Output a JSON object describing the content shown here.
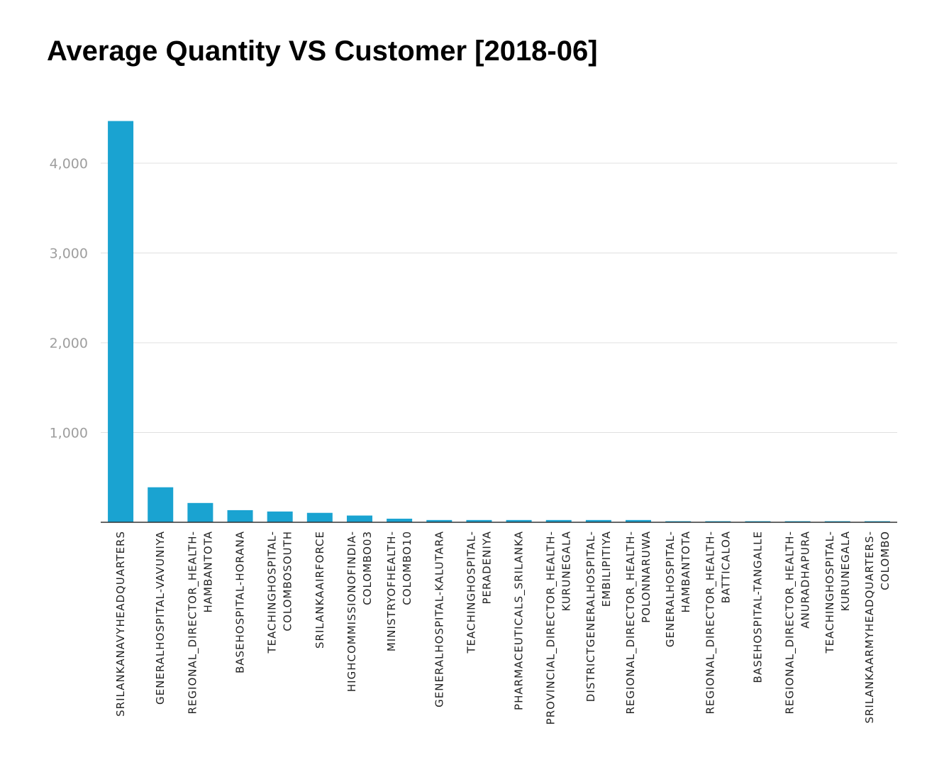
{
  "chart_data": {
    "type": "bar",
    "title": "Average Quantity VS Customer [2018-06]",
    "xlabel": "",
    "ylabel": "",
    "ylim": [
      0,
      4500
    ],
    "yticks": [
      1000,
      2000,
      3000,
      4000
    ],
    "ytick_labels": [
      "1,000",
      "2,000",
      "3,000",
      "4,000"
    ],
    "grid": true,
    "bar_color": "#1aa3d1",
    "categories": [
      [
        "SRILANKANAVYHEADQUARTERS"
      ],
      [
        "GENERALHOSPITAL-VAVUNIYA"
      ],
      [
        "REGIONAL_DIRECTOR_HEALTH-",
        "HAMBANTOTA"
      ],
      [
        "BASEHOSPITAL-HORANA"
      ],
      [
        "TEACHINGHOSPITAL-",
        "COLOMBOSOUTH"
      ],
      [
        "SRILANKAAIRFORCE"
      ],
      [
        "HIGHCOMMISSIONOFINDIA-",
        "COLOMBO03"
      ],
      [
        "MINISTRYOFHEALTH-",
        "COLOMBO10"
      ],
      [
        "GENERALHOSPITAL-KALUTARA"
      ],
      [
        "TEACHINGHOSPITAL-",
        "PERADENIYA"
      ],
      [
        "PHARMACEUTICALS_SRILANKA"
      ],
      [
        "PROVINCIAL_DIRECTOR_HEALTH-",
        "KURUNEGALA"
      ],
      [
        "DISTRICTGENERALHOSPITAL-",
        "EMBILIPITIYA"
      ],
      [
        "REGIONAL_DIRECTOR_HEALTH-",
        "POLONNARUWA"
      ],
      [
        "GENERALHOSPITAL-",
        "HAMBANTOTA"
      ],
      [
        "REGIONAL_DIRECTOR_HEALTH-",
        "BATTICALOA"
      ],
      [
        "BASEHOSPITAL-TANGALLE"
      ],
      [
        "REGIONAL_DIRECTOR_HEALTH-",
        "ANURADHAPURA"
      ],
      [
        "TEACHINGHOSPITAL-",
        "KURUNEGALA"
      ],
      [
        "SRILANKAARMYHEADQUARTERS-",
        "COLOMBO"
      ]
    ],
    "values": [
      4470,
      390,
      215,
      135,
      120,
      105,
      75,
      40,
      25,
      25,
      25,
      25,
      25,
      25,
      12,
      12,
      12,
      12,
      12,
      12
    ]
  }
}
